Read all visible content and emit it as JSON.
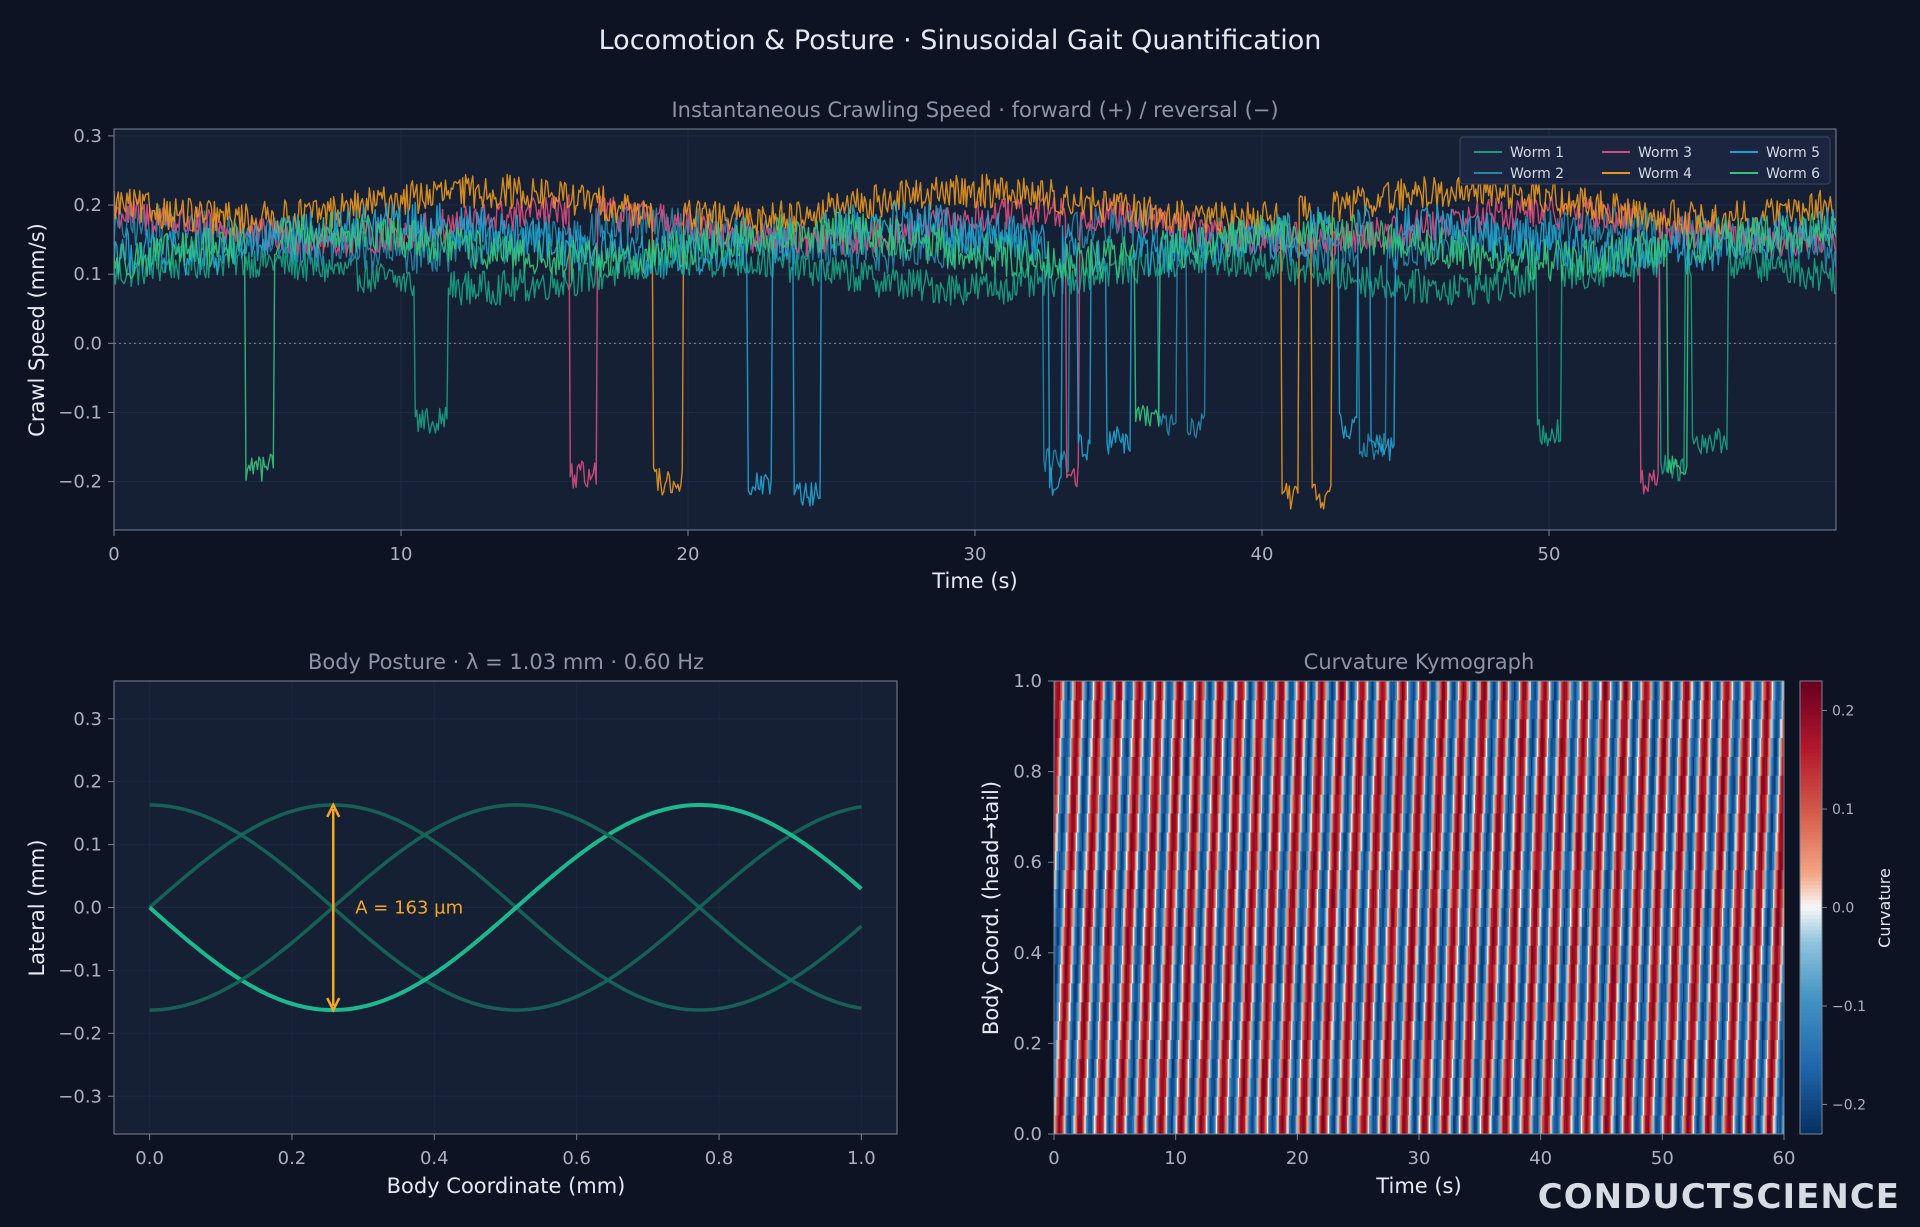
{
  "suptitle": "Locomotion & Posture · Sinusoidal Gait Quantification",
  "watermark": "CONDUCTSCIENCE",
  "theme": {
    "background": "#0d1322",
    "panel": "#162035",
    "text": "#e6e9f0",
    "subtitle": "#8c95a8",
    "tick": "#aab2c2",
    "spine": "#7b8497"
  },
  "chart_data": [
    {
      "type": "line",
      "title": "Instantaneous Crawling Speed · forward (+) / reversal (−)",
      "xlabel": "Time (s)",
      "ylabel": "Crawl Speed (mm/s)",
      "xlim": [
        0,
        60
      ],
      "ylim": [
        -0.27,
        0.31
      ],
      "xticks": [
        0,
        10,
        20,
        30,
        40,
        50
      ],
      "xtick_labels": [
        "0",
        "10",
        "20",
        "30",
        "40",
        "50"
      ],
      "yticks": [
        -0.2,
        -0.1,
        0.0,
        0.1,
        0.2,
        0.3
      ],
      "ytick_labels": [
        "−0.2",
        "−0.1",
        "0.0",
        "0.1",
        "0.2",
        "0.3"
      ],
      "zero_line": true,
      "legend": "top-right",
      "series": [
        {
          "name": "Worm 1",
          "color": "#16a07f",
          "base": 0.1,
          "noise": 0.025,
          "reversals": [
            [
              10.5,
              11.6,
              -0.11
            ],
            [
              49.6,
              50.4,
              -0.13
            ],
            [
              53.9,
              54.7,
              -0.18
            ],
            [
              55.0,
              56.2,
              -0.14
            ]
          ]
        },
        {
          "name": "Worm 2",
          "color": "#2387a8",
          "base": 0.15,
          "noise": 0.03,
          "reversals": [
            [
              32.4,
              33.3,
              -0.17
            ],
            [
              36.4,
              37.0,
              -0.12
            ],
            [
              37.4,
              38.0,
              -0.12
            ],
            [
              43.4,
              44.3,
              -0.15
            ]
          ]
        },
        {
          "name": "Worm 3",
          "color": "#d64d7f",
          "base": 0.17,
          "noise": 0.025,
          "reversals": [
            [
              15.9,
              16.8,
              -0.19
            ],
            [
              33.2,
              33.6,
              -0.19
            ],
            [
              53.2,
              53.8,
              -0.2
            ]
          ]
        },
        {
          "name": "Worm 4",
          "color": "#e8961e",
          "base": 0.2,
          "noise": 0.025,
          "reversals": [
            [
              18.8,
              19.8,
              -0.2
            ],
            [
              40.7,
              41.3,
              -0.22
            ],
            [
              41.7,
              42.4,
              -0.22
            ]
          ]
        },
        {
          "name": "Worm 5",
          "color": "#1fa3d0",
          "base": 0.15,
          "noise": 0.035,
          "reversals": [
            [
              22.1,
              22.9,
              -0.2
            ],
            [
              23.7,
              24.6,
              -0.22
            ],
            [
              32.6,
              33.0,
              -0.2
            ],
            [
              33.6,
              34.0,
              -0.15
            ],
            [
              34.6,
              35.4,
              -0.14
            ],
            [
              42.7,
              43.3,
              -0.12
            ],
            [
              43.8,
              44.6,
              -0.15
            ]
          ]
        },
        {
          "name": "Worm 6",
          "color": "#33c47a",
          "base": 0.14,
          "noise": 0.03,
          "reversals": [
            [
              4.6,
              5.6,
              -0.18
            ],
            [
              35.6,
              36.4,
              -0.1
            ],
            [
              54.1,
              54.8,
              -0.17
            ]
          ]
        }
      ]
    },
    {
      "type": "line",
      "title": "Body Posture · λ = 1.03 mm · 0.60 Hz",
      "xlabel": "Body Coordinate (mm)",
      "ylabel": "Lateral (mm)",
      "xlim": [
        -0.05,
        1.05
      ],
      "ylim": [
        -0.36,
        0.36
      ],
      "xticks": [
        0.0,
        0.2,
        0.4,
        0.6,
        0.8,
        1.0
      ],
      "xtick_labels": [
        "0.0",
        "0.2",
        "0.4",
        "0.6",
        "0.8",
        "1.0"
      ],
      "yticks": [
        -0.3,
        -0.2,
        -0.1,
        0.0,
        0.1,
        0.2,
        0.3
      ],
      "ytick_labels": [
        "−0.3",
        "−0.2",
        "−0.1",
        "0.0",
        "0.1",
        "0.2",
        "0.3"
      ],
      "wavelength": 1.03,
      "amplitude": 0.163,
      "phases": [
        0.0,
        1.5708,
        3.1416,
        4.7124
      ],
      "highlight_phase": 3.1416,
      "annotation": {
        "text": "A = 163 µm",
        "x": 0.258,
        "y_top": 0.163,
        "y_bottom": -0.163,
        "color": "#f5a623"
      },
      "line_color": "#1bb98e"
    },
    {
      "type": "heatmap",
      "title": "Curvature Kymograph",
      "xlabel": "Time (s)",
      "ylabel": "Body Coord. (head→tail)",
      "xlim": [
        0,
        60
      ],
      "ylim": [
        0.0,
        1.0
      ],
      "xticks": [
        0,
        10,
        20,
        30,
        40,
        50,
        60
      ],
      "xtick_labels": [
        "0",
        "10",
        "20",
        "30",
        "40",
        "50",
        "60"
      ],
      "yticks": [
        0.0,
        0.2,
        0.4,
        0.6,
        0.8,
        1.0
      ],
      "ytick_labels": [
        "0.0",
        "0.2",
        "0.4",
        "0.6",
        "0.8",
        "1.0"
      ],
      "colormap": "RdBu_r",
      "frequency_hz": 0.6,
      "body_phase_cycles": 0.97,
      "curvature_amplitude": 0.2,
      "colorbar": {
        "label": "Curvature",
        "range": [
          -0.23,
          0.23
        ],
        "ticks": [
          -0.2,
          -0.1,
          0.0,
          0.1,
          0.2
        ],
        "tick_labels": [
          "−0.2",
          "−0.1",
          "0.0",
          "0.1",
          "0.2"
        ]
      }
    }
  ]
}
